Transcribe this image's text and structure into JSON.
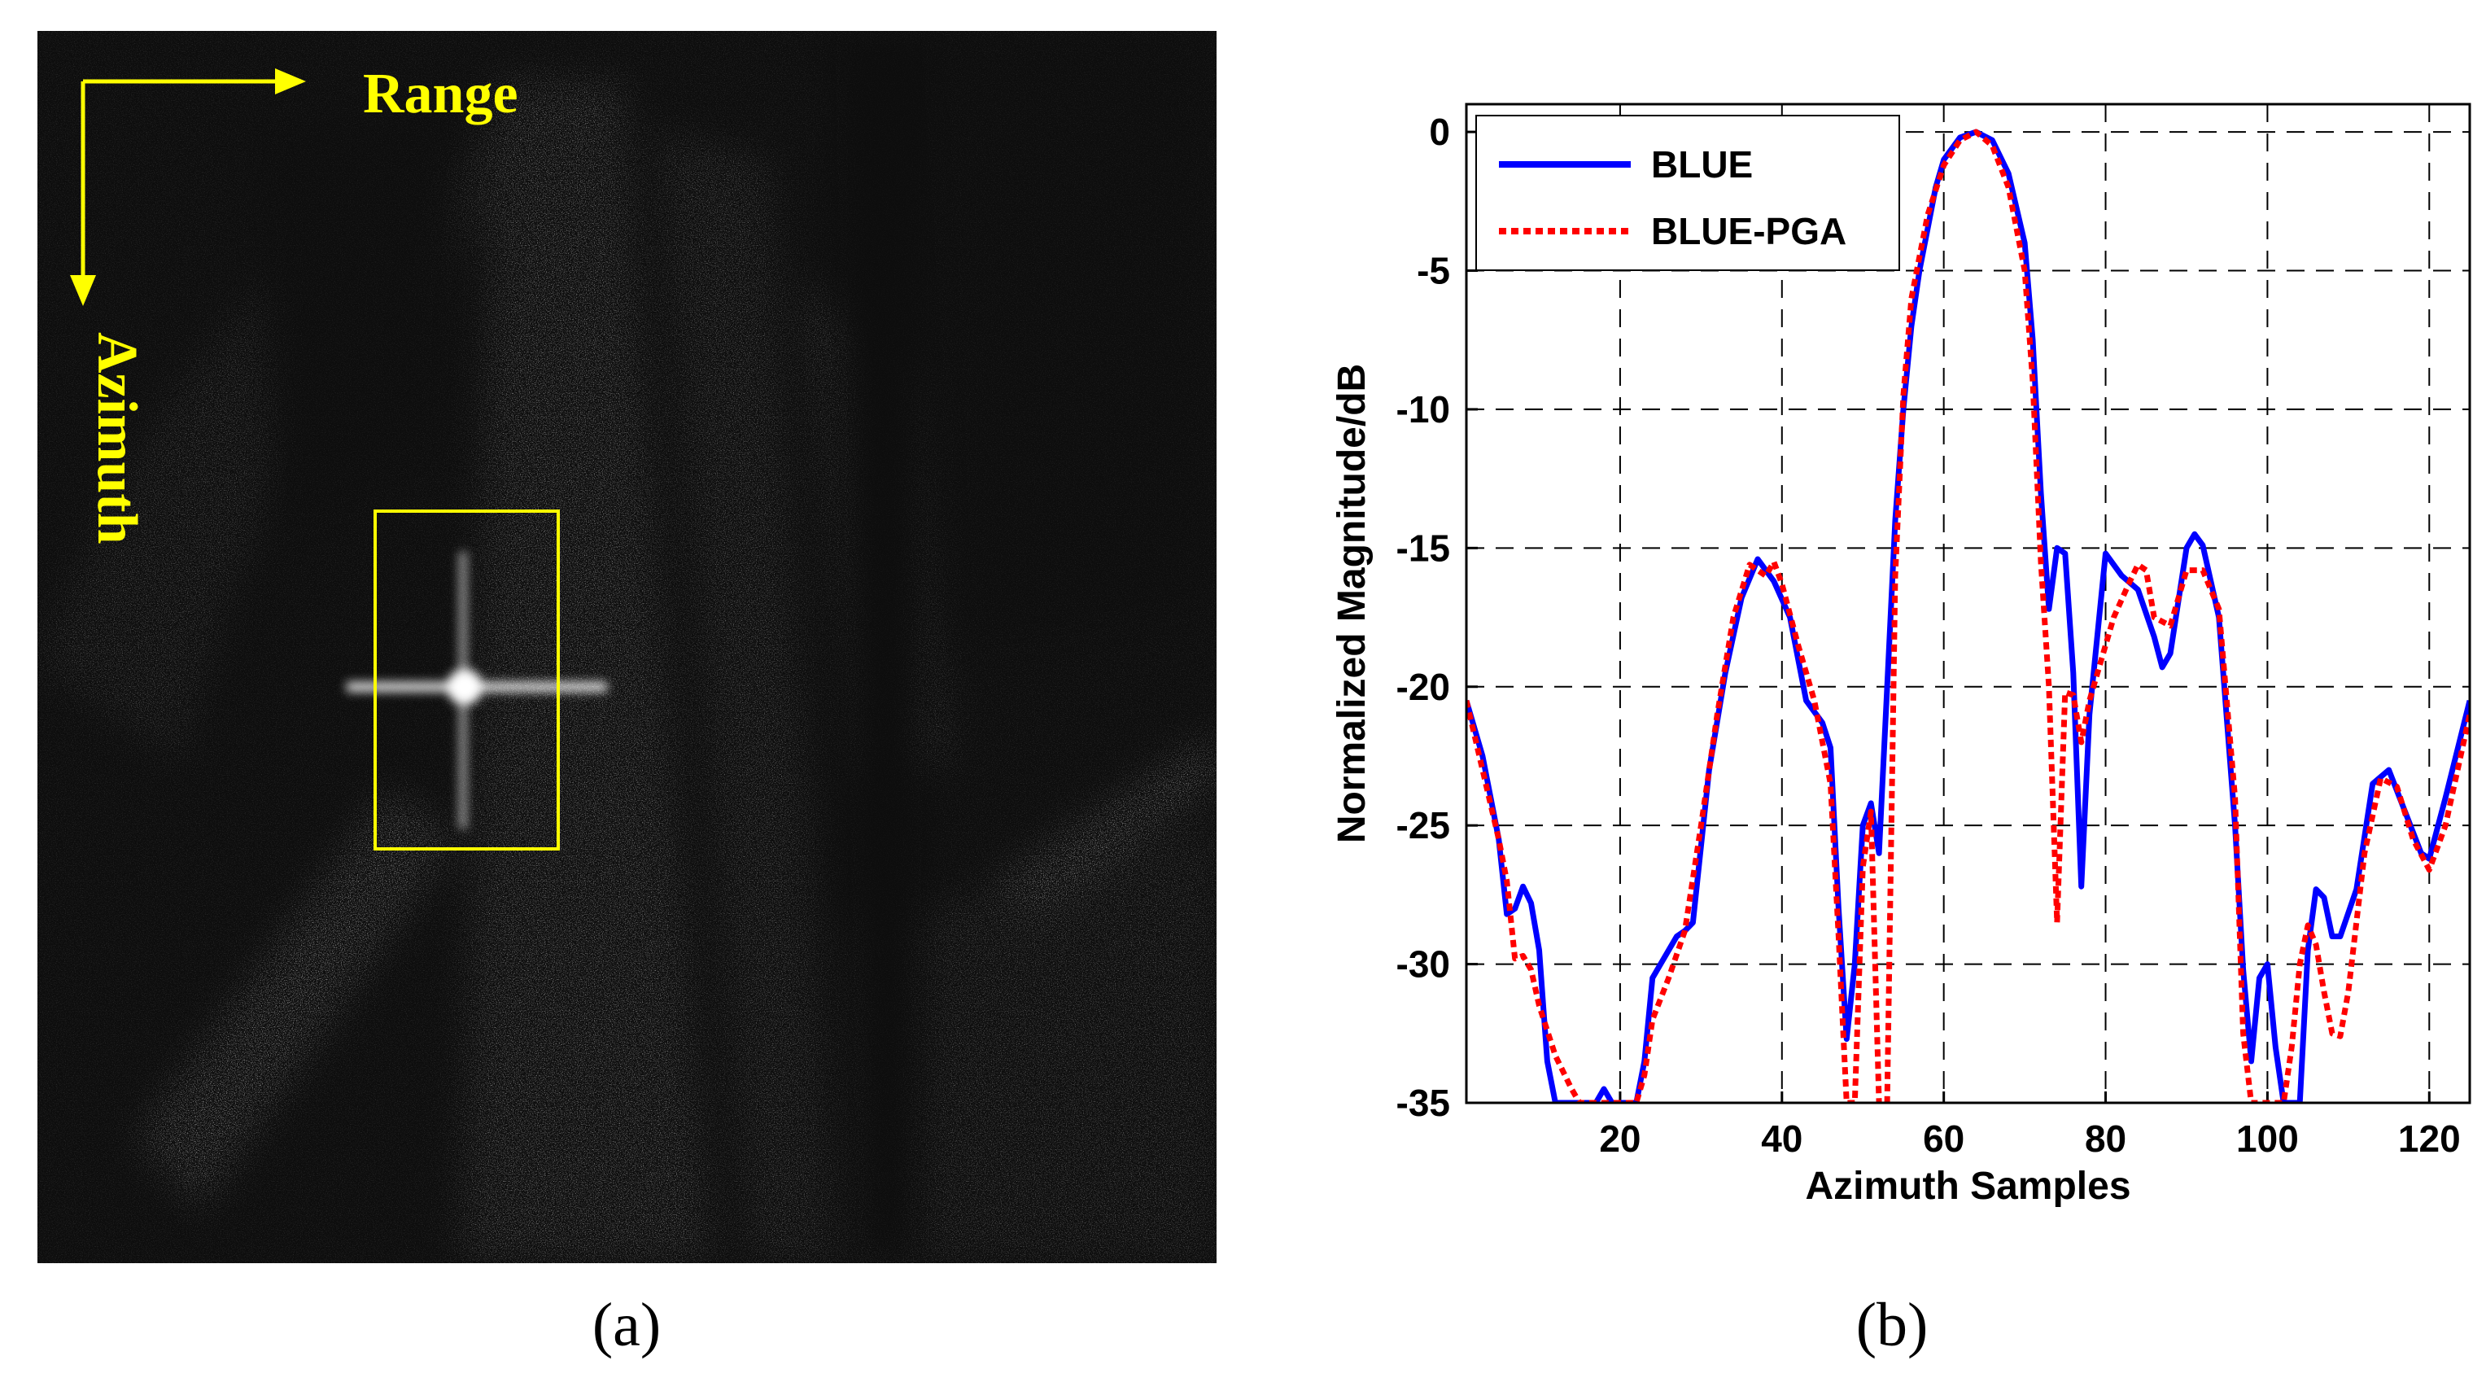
{
  "panel_a": {
    "range_label": "Range",
    "azimuth_label": "Azimuth",
    "caption": "(a)",
    "annotation_color": "#ffff00"
  },
  "panel_b": {
    "caption": "(b)"
  },
  "chart_data": {
    "type": "line",
    "title": "",
    "xlabel": "Azimuth Samples",
    "ylabel": "Normalized Magnitude/dB",
    "xlim": [
      1,
      125
    ],
    "ylim": [
      -35,
      1
    ],
    "xticks": [
      20,
      40,
      60,
      80,
      100,
      120
    ],
    "yticks": [
      0,
      -5,
      -10,
      -15,
      -20,
      -25,
      -30,
      -35
    ],
    "grid": true,
    "legend_position": "top-left",
    "series": [
      {
        "name": "BLUE",
        "color": "#0000ff",
        "style": "solid",
        "points": [
          [
            1,
            -20.5
          ],
          [
            3,
            -22.5
          ],
          [
            5,
            -25.5
          ],
          [
            6,
            -28.2
          ],
          [
            7,
            -28
          ],
          [
            8,
            -27.2
          ],
          [
            9,
            -27.8
          ],
          [
            10,
            -29.5
          ],
          [
            11,
            -33.5
          ],
          [
            12,
            -35.5
          ],
          [
            17,
            -35.5
          ],
          [
            18,
            -34.5
          ],
          [
            19,
            -35.5
          ],
          [
            22,
            -35.5
          ],
          [
            23,
            -33.5
          ],
          [
            24,
            -30.5
          ],
          [
            25,
            -30
          ],
          [
            27,
            -29
          ],
          [
            28,
            -28.8
          ],
          [
            29,
            -28.5
          ],
          [
            31,
            -23
          ],
          [
            33,
            -19.5
          ],
          [
            35,
            -16.8
          ],
          [
            37,
            -15.4
          ],
          [
            39,
            -16.2
          ],
          [
            41,
            -17.5
          ],
          [
            43,
            -20.5
          ],
          [
            45,
            -21.3
          ],
          [
            46,
            -22.2
          ],
          [
            47,
            -28
          ],
          [
            48,
            -32.7
          ],
          [
            49,
            -30
          ],
          [
            50,
            -25
          ],
          [
            51,
            -24.2
          ],
          [
            52,
            -26
          ],
          [
            53,
            -20
          ],
          [
            54,
            -14
          ],
          [
            55,
            -10
          ],
          [
            56,
            -7
          ],
          [
            57,
            -5
          ],
          [
            58,
            -3.5
          ],
          [
            59,
            -2
          ],
          [
            60,
            -1
          ],
          [
            62,
            -0.2
          ],
          [
            64,
            0
          ],
          [
            66,
            -0.3
          ],
          [
            68,
            -1.5
          ],
          [
            70,
            -4
          ],
          [
            71,
            -7.5
          ],
          [
            72,
            -13
          ],
          [
            73,
            -17.2
          ],
          [
            74,
            -15
          ],
          [
            75,
            -15.2
          ],
          [
            76,
            -19.5
          ],
          [
            77,
            -27.2
          ],
          [
            78,
            -21
          ],
          [
            80,
            -15.2
          ],
          [
            82,
            -16
          ],
          [
            84,
            -16.5
          ],
          [
            86,
            -18.2
          ],
          [
            87,
            -19.3
          ],
          [
            88,
            -18.8
          ],
          [
            90,
            -15
          ],
          [
            91,
            -14.5
          ],
          [
            92,
            -14.9
          ],
          [
            94,
            -17.5
          ],
          [
            96,
            -25
          ],
          [
            97,
            -30.2
          ],
          [
            98,
            -33.5
          ],
          [
            99,
            -30.5
          ],
          [
            100,
            -30
          ],
          [
            101,
            -33
          ],
          [
            102,
            -35.5
          ],
          [
            104,
            -35.5
          ],
          [
            105,
            -29.5
          ],
          [
            106,
            -27.3
          ],
          [
            107,
            -27.6
          ],
          [
            108,
            -29
          ],
          [
            109,
            -29
          ],
          [
            111,
            -27.3
          ],
          [
            113,
            -23.5
          ],
          [
            115,
            -23
          ],
          [
            117,
            -24.5
          ],
          [
            119,
            -26
          ],
          [
            120,
            -26.2
          ],
          [
            122,
            -24
          ],
          [
            125,
            -20.5
          ]
        ]
      },
      {
        "name": "BLUE-PGA",
        "color": "#ff0000",
        "style": "dotted",
        "points": [
          [
            1,
            -20.5
          ],
          [
            3,
            -23
          ],
          [
            5,
            -25.5
          ],
          [
            6,
            -27
          ],
          [
            7,
            -29.8
          ],
          [
            8,
            -29.7
          ],
          [
            9,
            -30.2
          ],
          [
            10,
            -31.5
          ],
          [
            12,
            -33.3
          ],
          [
            14,
            -34.5
          ],
          [
            15,
            -35.5
          ],
          [
            22,
            -35.5
          ],
          [
            23,
            -34
          ],
          [
            24,
            -32
          ],
          [
            26,
            -30.5
          ],
          [
            28,
            -28.8
          ],
          [
            30,
            -25
          ],
          [
            32,
            -21
          ],
          [
            34,
            -17.5
          ],
          [
            36,
            -15.6
          ],
          [
            38,
            -16
          ],
          [
            39,
            -15.5
          ],
          [
            40,
            -16.3
          ],
          [
            42,
            -18.5
          ],
          [
            44,
            -20.5
          ],
          [
            46,
            -23.5
          ],
          [
            47,
            -29
          ],
          [
            48,
            -35.5
          ],
          [
            49,
            -35.5
          ],
          [
            50,
            -26.5
          ],
          [
            51,
            -24.5
          ],
          [
            52,
            -35.5
          ],
          [
            53,
            -35.5
          ],
          [
            54,
            -16
          ],
          [
            55,
            -9.5
          ],
          [
            56,
            -6
          ],
          [
            57,
            -4.5
          ],
          [
            58,
            -3
          ],
          [
            60,
            -1.2
          ],
          [
            62,
            -0.3
          ],
          [
            64,
            0
          ],
          [
            66,
            -0.5
          ],
          [
            68,
            -2
          ],
          [
            70,
            -5
          ],
          [
            71,
            -9
          ],
          [
            72,
            -15.5
          ],
          [
            73,
            -20
          ],
          [
            74,
            -28.5
          ],
          [
            75,
            -20.2
          ],
          [
            76,
            -20.3
          ],
          [
            77,
            -22
          ],
          [
            78,
            -20.5
          ],
          [
            79,
            -19.5
          ],
          [
            81,
            -17.5
          ],
          [
            83,
            -16.2
          ],
          [
            84,
            -15.6
          ],
          [
            85,
            -15.8
          ],
          [
            86,
            -17.5
          ],
          [
            88,
            -17.8
          ],
          [
            90,
            -15.8
          ],
          [
            92,
            -15.8
          ],
          [
            94,
            -17.2
          ],
          [
            96,
            -24
          ],
          [
            97,
            -32.5
          ],
          [
            98,
            -35.5
          ],
          [
            102,
            -35.5
          ],
          [
            103,
            -33
          ],
          [
            104,
            -30
          ],
          [
            105,
            -28.6
          ],
          [
            106,
            -29.3
          ],
          [
            107,
            -31
          ],
          [
            108,
            -32.5
          ],
          [
            109,
            -32.6
          ],
          [
            110,
            -31
          ],
          [
            112,
            -26
          ],
          [
            114,
            -23.3
          ],
          [
            116,
            -23.6
          ],
          [
            118,
            -25.5
          ],
          [
            120,
            -26.6
          ],
          [
            122,
            -25
          ],
          [
            125,
            -21
          ]
        ]
      }
    ]
  }
}
